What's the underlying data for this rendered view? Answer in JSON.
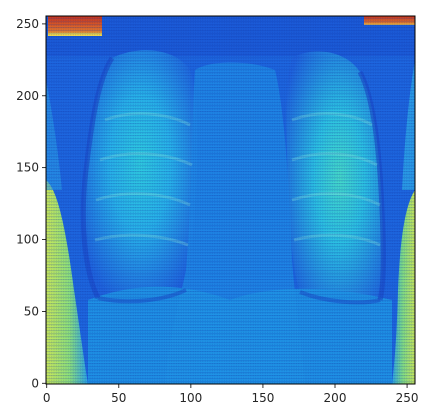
{
  "figure": {
    "image": {
      "description_name": "chest-xray-heatmap",
      "colormap": "jet",
      "shape": [
        256,
        256
      ]
    },
    "x_axis": {
      "ticks": [
        0,
        50,
        100,
        150,
        200,
        250
      ],
      "range": [
        -0.5,
        255.5
      ]
    },
    "y_axis": {
      "ticks": [
        0,
        50,
        100,
        150,
        200,
        250
      ],
      "range": [
        255.5,
        -0.5
      ]
    },
    "colors": {
      "frame": "#000000",
      "deep_blue": "#1f4fd8",
      "mid_blue": "#1f78e6",
      "light_blue": "#1e9fe8",
      "cyan": "#2fd2d8",
      "green": "#7de27a",
      "yellow": "#d8e85a",
      "red": "#d94a2b"
    }
  }
}
